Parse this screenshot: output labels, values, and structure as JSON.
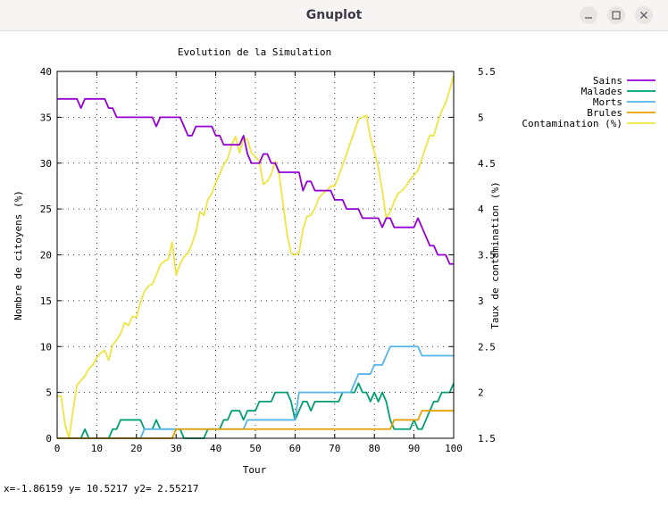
{
  "window": {
    "title": "Gnuplot"
  },
  "status_text": "x=-1.86159 y= 10.5217 y2= 2.55217",
  "chart_data": {
    "type": "line",
    "title": "Evolution de la Simulation",
    "xlabel": "Tour",
    "ylabel": "Nombre de citoyens  (%)",
    "y2label": "Taux de contamination (%)",
    "xlim": [
      0,
      100
    ],
    "ylim": [
      0,
      40
    ],
    "y2lim": [
      1.5,
      5.5
    ],
    "grid": true,
    "legend_position": "top-right",
    "x_ticks": [
      "0",
      "10",
      "20",
      "30",
      "40",
      "50",
      "60",
      "70",
      "80",
      "90",
      "100"
    ],
    "y_ticks": [
      "0",
      "5",
      "10",
      "15",
      "20",
      "25",
      "30",
      "35",
      "40"
    ],
    "y2_ticks": [
      "1.5",
      "2",
      "2.5",
      "3",
      "3.5",
      "4",
      "4.5",
      "5",
      "5.5"
    ],
    "series": [
      {
        "name": "Sains",
        "axis": "y",
        "color": "#9400d3",
        "points": [
          [
            0,
            37
          ],
          [
            5,
            37
          ],
          [
            6,
            36
          ],
          [
            7,
            37
          ],
          [
            12,
            37
          ],
          [
            13,
            36
          ],
          [
            14,
            36
          ],
          [
            15,
            35
          ],
          [
            24,
            35
          ],
          [
            25,
            34
          ],
          [
            26,
            35
          ],
          [
            29,
            35
          ],
          [
            31,
            35
          ],
          [
            32,
            34
          ],
          [
            33,
            33
          ],
          [
            34,
            33
          ],
          [
            35,
            34
          ],
          [
            39,
            34
          ],
          [
            40,
            33
          ],
          [
            41,
            33
          ],
          [
            42,
            32
          ],
          [
            46,
            32
          ],
          [
            47,
            33
          ],
          [
            48,
            31
          ],
          [
            49,
            30
          ],
          [
            51,
            30
          ],
          [
            52,
            31
          ],
          [
            53,
            31
          ],
          [
            54,
            30
          ],
          [
            55,
            30
          ],
          [
            56,
            29
          ],
          [
            61,
            29
          ],
          [
            62,
            27
          ],
          [
            63,
            28
          ],
          [
            64,
            28
          ],
          [
            65,
            27
          ],
          [
            69,
            27
          ],
          [
            70,
            26
          ],
          [
            72,
            26
          ],
          [
            73,
            25
          ],
          [
            76,
            25
          ],
          [
            77,
            24
          ],
          [
            80,
            24
          ],
          [
            81,
            24
          ],
          [
            82,
            23
          ],
          [
            83,
            24
          ],
          [
            84,
            24
          ],
          [
            85,
            23
          ],
          [
            90,
            23
          ],
          [
            91,
            24
          ],
          [
            92,
            23
          ],
          [
            93,
            22
          ],
          [
            94,
            21
          ],
          [
            95,
            21
          ],
          [
            96,
            20
          ],
          [
            98,
            20
          ],
          [
            99,
            19
          ],
          [
            100,
            19
          ]
        ]
      },
      {
        "name": "Malades",
        "axis": "y",
        "color": "#009e73",
        "points": [
          [
            0,
            0
          ],
          [
            6,
            0
          ],
          [
            7,
            1
          ],
          [
            8,
            0
          ],
          [
            13,
            0
          ],
          [
            14,
            1
          ],
          [
            15,
            1
          ],
          [
            16,
            2
          ],
          [
            21,
            2
          ],
          [
            22,
            1
          ],
          [
            24,
            1
          ],
          [
            25,
            2
          ],
          [
            26,
            1
          ],
          [
            29,
            1
          ],
          [
            31,
            1
          ],
          [
            32,
            0
          ],
          [
            37,
            0
          ],
          [
            38,
            1
          ],
          [
            41,
            1
          ],
          [
            42,
            2
          ],
          [
            43,
            2
          ],
          [
            44,
            3
          ],
          [
            46,
            3
          ],
          [
            47,
            2
          ],
          [
            48,
            3
          ],
          [
            50,
            3
          ],
          [
            51,
            4
          ],
          [
            54,
            4
          ],
          [
            55,
            5
          ],
          [
            58,
            5
          ],
          [
            59,
            4
          ],
          [
            60,
            2
          ],
          [
            61,
            3
          ],
          [
            62,
            4
          ],
          [
            63,
            4
          ],
          [
            64,
            3
          ],
          [
            65,
            4
          ],
          [
            71,
            4
          ],
          [
            72,
            5
          ],
          [
            75,
            5
          ],
          [
            76,
            6
          ],
          [
            77,
            5
          ],
          [
            78,
            5
          ],
          [
            79,
            4
          ],
          [
            80,
            5
          ],
          [
            81,
            4
          ],
          [
            82,
            5
          ],
          [
            83,
            4
          ],
          [
            84,
            2
          ],
          [
            85,
            1
          ],
          [
            89,
            1
          ],
          [
            90,
            2
          ],
          [
            91,
            1
          ],
          [
            92,
            1
          ],
          [
            93,
            2
          ],
          [
            95,
            4
          ],
          [
            96,
            4
          ],
          [
            97,
            5
          ],
          [
            99,
            5
          ],
          [
            100,
            6
          ]
        ]
      },
      {
        "name": "Morts",
        "axis": "y",
        "color": "#56b4e9",
        "points": [
          [
            0,
            0
          ],
          [
            21,
            0
          ],
          [
            22,
            1
          ],
          [
            47,
            1
          ],
          [
            48,
            2
          ],
          [
            60,
            2
          ],
          [
            61,
            5
          ],
          [
            74,
            5
          ],
          [
            75,
            6
          ],
          [
            76,
            7
          ],
          [
            79,
            7
          ],
          [
            80,
            8
          ],
          [
            82,
            8
          ],
          [
            83,
            9
          ],
          [
            84,
            10
          ],
          [
            91,
            10
          ],
          [
            92,
            9
          ],
          [
            100,
            9
          ]
        ]
      },
      {
        "name": "Brules",
        "axis": "y",
        "color": "#e69f00",
        "points": [
          [
            0,
            0
          ],
          [
            29,
            0
          ],
          [
            30,
            1
          ],
          [
            84,
            1
          ],
          [
            85,
            2
          ],
          [
            91,
            2
          ],
          [
            92,
            3
          ],
          [
            100,
            3
          ]
        ]
      },
      {
        "name": "Contamination (%)",
        "axis": "y2",
        "color": "#f0e442",
        "points": [
          [
            0,
            1.96
          ],
          [
            1,
            1.96
          ],
          [
            2,
            1.65
          ],
          [
            3,
            1.5
          ],
          [
            4,
            1.8
          ],
          [
            5,
            2.08
          ],
          [
            6,
            2.13
          ],
          [
            7,
            2.18
          ],
          [
            8,
            2.26
          ],
          [
            9,
            2.3
          ],
          [
            10,
            2.38
          ],
          [
            11,
            2.43
          ],
          [
            12,
            2.46
          ],
          [
            13,
            2.35
          ],
          [
            14,
            2.52
          ],
          [
            15,
            2.57
          ],
          [
            16,
            2.64
          ],
          [
            17,
            2.76
          ],
          [
            18,
            2.73
          ],
          [
            19,
            2.83
          ],
          [
            20,
            2.82
          ],
          [
            21,
            2.98
          ],
          [
            22,
            3.1
          ],
          [
            23,
            3.16
          ],
          [
            24,
            3.18
          ],
          [
            25,
            3.28
          ],
          [
            26,
            3.39
          ],
          [
            27,
            3.43
          ],
          [
            28,
            3.45
          ],
          [
            29,
            3.64
          ],
          [
            30,
            3.28
          ],
          [
            31,
            3.4
          ],
          [
            32,
            3.48
          ],
          [
            33,
            3.52
          ],
          [
            34,
            3.62
          ],
          [
            35,
            3.75
          ],
          [
            36,
            3.97
          ],
          [
            37,
            3.93
          ],
          [
            38,
            4.1
          ],
          [
            39,
            4.17
          ],
          [
            40,
            4.29
          ],
          [
            41,
            4.38
          ],
          [
            42,
            4.48
          ],
          [
            43,
            4.55
          ],
          [
            44,
            4.7
          ],
          [
            45,
            4.79
          ],
          [
            46,
            4.61
          ],
          [
            47,
            4.77
          ],
          [
            48,
            4.76
          ],
          [
            49,
            4.61
          ],
          [
            50,
            4.57
          ],
          [
            51,
            4.52
          ],
          [
            52,
            4.27
          ],
          [
            53,
            4.3
          ],
          [
            54,
            4.38
          ],
          [
            55,
            4.52
          ],
          [
            56,
            4.37
          ],
          [
            57,
            4.05
          ],
          [
            58,
            3.72
          ],
          [
            59,
            3.52
          ],
          [
            60,
            3.5
          ],
          [
            61,
            3.52
          ],
          [
            62,
            3.78
          ],
          [
            63,
            3.92
          ],
          [
            64,
            3.93
          ],
          [
            65,
            4.01
          ],
          [
            66,
            4.12
          ],
          [
            67,
            4.17
          ],
          [
            68,
            4.2
          ],
          [
            69,
            4.25
          ],
          [
            70,
            4.25
          ],
          [
            71,
            4.36
          ],
          [
            72,
            4.48
          ],
          [
            73,
            4.6
          ],
          [
            74,
            4.73
          ],
          [
            75,
            4.85
          ],
          [
            76,
            4.98
          ],
          [
            77,
            5.0
          ],
          [
            78,
            5.02
          ],
          [
            79,
            4.78
          ],
          [
            80,
            4.62
          ],
          [
            81,
            4.45
          ],
          [
            82,
            4.2
          ],
          [
            83,
            3.9
          ],
          [
            84,
            3.97
          ],
          [
            85,
            4.08
          ],
          [
            86,
            4.17
          ],
          [
            87,
            4.2
          ],
          [
            88,
            4.25
          ],
          [
            89,
            4.32
          ],
          [
            90,
            4.37
          ],
          [
            91,
            4.42
          ],
          [
            92,
            4.55
          ],
          [
            93,
            4.68
          ],
          [
            94,
            4.8
          ],
          [
            95,
            4.8
          ],
          [
            96,
            4.95
          ],
          [
            97,
            5.07
          ],
          [
            98,
            5.16
          ],
          [
            99,
            5.3
          ],
          [
            100,
            5.45
          ]
        ]
      }
    ]
  }
}
